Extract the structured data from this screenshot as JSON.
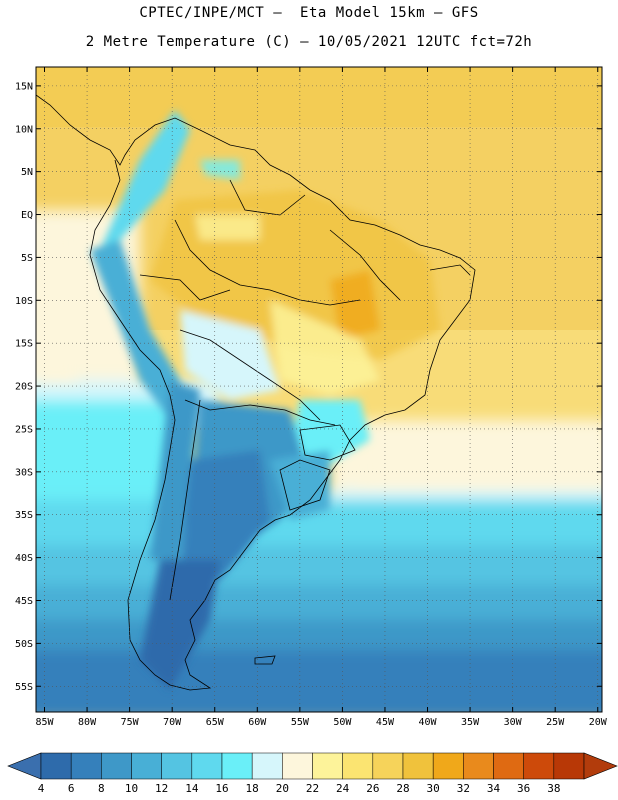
{
  "header": {
    "line1": "CPTEC/INPE/MCT –  Eta Model 15km – GFS",
    "line2": "2 Metre Temperature (C) – 10/05/2021 12UTC fct=72h"
  },
  "map": {
    "lat_labels": [
      "15N",
      "10N",
      "5N",
      "EQ",
      "5S",
      "10S",
      "15S",
      "20S",
      "25S",
      "30S",
      "35S",
      "40S",
      "45S",
      "50S",
      "55S"
    ],
    "lon_labels": [
      "85W",
      "80W",
      "75W",
      "70W",
      "65W",
      "60W",
      "55W",
      "50W",
      "45W",
      "40W",
      "35W",
      "30W",
      "25W",
      "20W"
    ]
  },
  "colorbar": {
    "labels": [
      "4",
      "6",
      "8",
      "10",
      "12",
      "14",
      "16",
      "18",
      "20",
      "22",
      "24",
      "26",
      "28",
      "30",
      "32",
      "34",
      "36",
      "38"
    ],
    "colors": [
      "#2e6bab",
      "#3580bb",
      "#3e98c8",
      "#48afd6",
      "#54c4e2",
      "#5fd9ee",
      "#6aeff8",
      "#d6f6fb",
      "#fdf6dc",
      "#fdf39a",
      "#fbe471",
      "#f6d35a",
      "#f0c23c",
      "#f0a81a",
      "#e98a1c",
      "#df6a12",
      "#cd4a0a",
      "#b83806"
    ],
    "low_color": "#3a6fae",
    "high_color": "#b23c0c"
  }
}
